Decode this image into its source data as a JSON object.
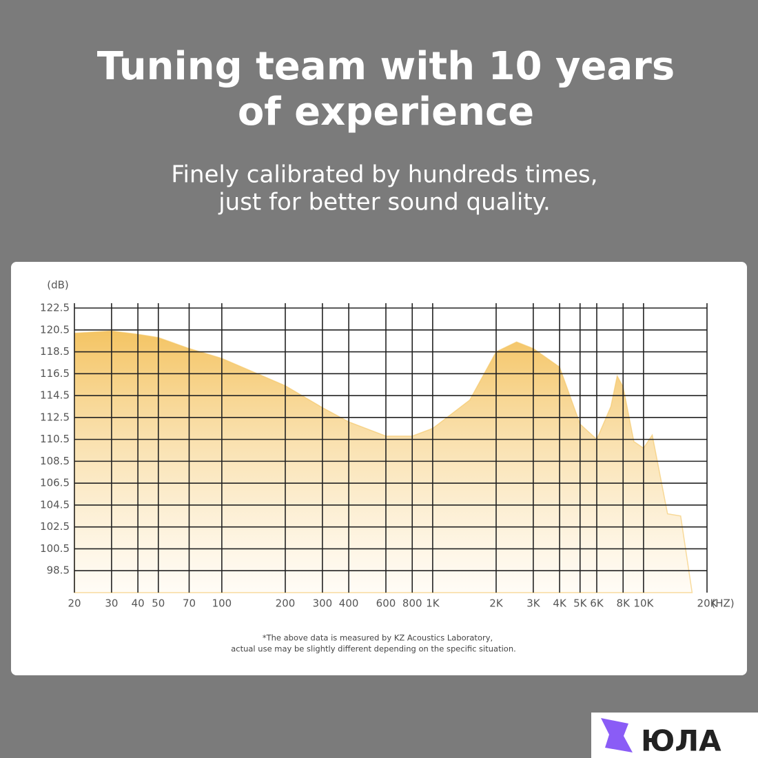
{
  "headline": [
    "Tuning team with 10 years",
    "of experience"
  ],
  "subheadline": [
    "Finely calibrated by hundreds times,",
    "just for better sound quality."
  ],
  "chart_data": {
    "type": "area",
    "ylabel": "(dB)",
    "xlabel": "(HZ)",
    "x": [
      20,
      30,
      40,
      50,
      70,
      100,
      200,
      300,
      400,
      600,
      800,
      1000,
      1500,
      2000,
      2500,
      3000,
      4000,
      5000,
      6000,
      7000,
      7500,
      8000,
      9000,
      10000,
      11000,
      13000,
      15000,
      17000
    ],
    "values": [
      120.2,
      120.4,
      120.1,
      119.8,
      118.8,
      117.9,
      115.4,
      113.4,
      112.1,
      110.8,
      110.8,
      111.5,
      114.1,
      118.5,
      119.4,
      118.8,
      117.1,
      111.9,
      110.5,
      113.5,
      116.3,
      115.3,
      110.3,
      109.7,
      110.9,
      103.7,
      103.5,
      96.5
    ],
    "color": "#f4c463",
    "xscale": "log",
    "grid": true,
    "xlim": [
      20,
      20000
    ],
    "ylim": [
      96.5,
      122.5
    ],
    "xticks": [
      20,
      30,
      40,
      50,
      70,
      100,
      200,
      300,
      400,
      600,
      800,
      {
        "value": 1000,
        "label": "1K"
      },
      {
        "value": 2000,
        "label": "2K"
      },
      {
        "value": 3000,
        "label": "3K"
      },
      {
        "value": 4000,
        "label": "4K"
      },
      {
        "value": 5000,
        "label": "5K"
      },
      {
        "value": 6000,
        "label": "6K"
      },
      {
        "value": 8000,
        "label": "8K"
      },
      {
        "value": 10000,
        "label": "10K"
      },
      {
        "value": 20000,
        "label": "20K"
      }
    ],
    "yticks": [
      98.5,
      100.5,
      102.5,
      104.5,
      106.5,
      108.5,
      110.5,
      112.5,
      114.5,
      116.5,
      118.5,
      120.5,
      122.5
    ]
  },
  "footnote": [
    "*The above data is measured by KZ Acoustics Laboratory,",
    "actual use may be slightly different depending on the specific situation."
  ],
  "watermark": "ЮЛА"
}
